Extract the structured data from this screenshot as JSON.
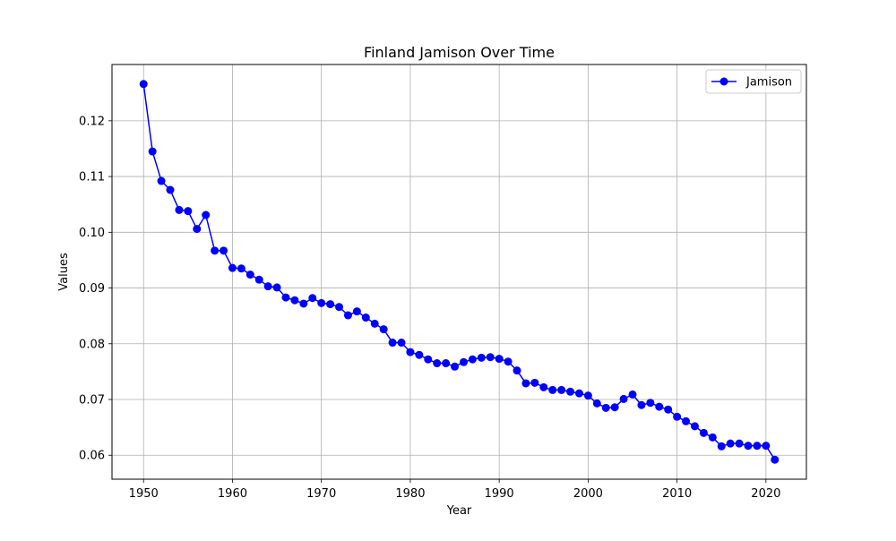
{
  "chart_data": {
    "type": "line",
    "title": "Finland Jamison Over Time",
    "xlabel": "Year",
    "ylabel": "Values",
    "xlim": [
      1946.45,
      2024.55
    ],
    "ylim": [
      0.0557,
      0.1301
    ],
    "x_ticks": [
      1950,
      1960,
      1970,
      1980,
      1990,
      2000,
      2010,
      2020
    ],
    "y_ticks": [
      0.06,
      0.07,
      0.08,
      0.09,
      0.1,
      0.11,
      0.12
    ],
    "y_tick_labels": [
      "0.06",
      "0.07",
      "0.08",
      "0.09",
      "0.10",
      "0.11",
      "0.12"
    ],
    "grid": true,
    "legend_position": "top-right",
    "series": [
      {
        "name": "Jamison",
        "color": "#0000ff",
        "marker": "circle",
        "x": [
          1950,
          1951,
          1952,
          1953,
          1954,
          1955,
          1956,
          1957,
          1958,
          1959,
          1960,
          1961,
          1962,
          1963,
          1964,
          1965,
          1966,
          1967,
          1968,
          1969,
          1970,
          1971,
          1972,
          1973,
          1974,
          1975,
          1976,
          1977,
          1978,
          1979,
          1980,
          1981,
          1982,
          1983,
          1984,
          1985,
          1986,
          1987,
          1988,
          1989,
          1990,
          1991,
          1992,
          1993,
          1994,
          1995,
          1996,
          1997,
          1998,
          1999,
          2000,
          2001,
          2002,
          2003,
          2004,
          2005,
          2006,
          2007,
          2008,
          2009,
          2010,
          2011,
          2012,
          2013,
          2014,
          2015,
          2016,
          2017,
          2018,
          2019,
          2020,
          2021
        ],
        "y": [
          0.1266,
          0.1145,
          0.1092,
          0.1076,
          0.104,
          0.1038,
          0.1006,
          0.1031,
          0.0967,
          0.0967,
          0.0936,
          0.0935,
          0.0924,
          0.0915,
          0.0903,
          0.0901,
          0.0883,
          0.0878,
          0.0872,
          0.0882,
          0.0873,
          0.0871,
          0.0866,
          0.0851,
          0.0858,
          0.0847,
          0.0836,
          0.0826,
          0.0802,
          0.0802,
          0.0785,
          0.078,
          0.0772,
          0.0765,
          0.0765,
          0.0759,
          0.0767,
          0.0772,
          0.0775,
          0.0776,
          0.0773,
          0.0768,
          0.0752,
          0.0729,
          0.073,
          0.0722,
          0.0717,
          0.0717,
          0.0714,
          0.0711,
          0.0707,
          0.0693,
          0.0685,
          0.0686,
          0.0701,
          0.0709,
          0.069,
          0.0694,
          0.0687,
          0.0682,
          0.0669,
          0.0661,
          0.0652,
          0.064,
          0.0632,
          0.0616,
          0.0621,
          0.0621,
          0.0617,
          0.0617,
          0.0617,
          0.0592
        ]
      }
    ]
  }
}
